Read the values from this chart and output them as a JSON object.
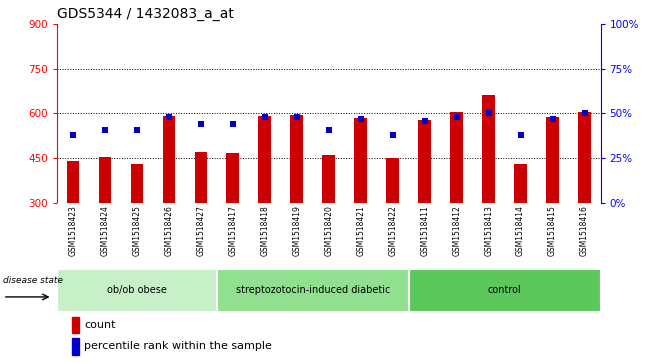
{
  "title": "GDS5344 / 1432083_a_at",
  "samples": [
    "GSM1518423",
    "GSM1518424",
    "GSM1518425",
    "GSM1518426",
    "GSM1518427",
    "GSM1518417",
    "GSM1518418",
    "GSM1518419",
    "GSM1518420",
    "GSM1518421",
    "GSM1518422",
    "GSM1518411",
    "GSM1518412",
    "GSM1518413",
    "GSM1518414",
    "GSM1518415",
    "GSM1518416"
  ],
  "counts": [
    440,
    455,
    430,
    590,
    470,
    468,
    590,
    596,
    462,
    585,
    452,
    578,
    605,
    660,
    430,
    587,
    605
  ],
  "percentile_ranks": [
    38,
    41,
    41,
    48,
    44,
    44,
    48,
    48,
    41,
    47,
    38,
    46,
    48,
    50,
    38,
    47,
    50
  ],
  "groups": [
    {
      "label": "ob/ob obese",
      "start": 0,
      "end": 5,
      "color": "#c8f0c8"
    },
    {
      "label": "streptozotocin-induced diabetic",
      "start": 5,
      "end": 11,
      "color": "#90e090"
    },
    {
      "label": "control",
      "start": 11,
      "end": 17,
      "color": "#5cc85c"
    }
  ],
  "bar_color": "#cc0000",
  "dot_color": "#0000cc",
  "plot_bg": "#ffffff",
  "xtick_bg": "#d8d8d8",
  "ylim_left": [
    300,
    900
  ],
  "ylim_right": [
    0,
    100
  ],
  "yticks_left": [
    300,
    450,
    600,
    750,
    900
  ],
  "yticks_right": [
    0,
    25,
    50,
    75,
    100
  ],
  "grid_lines": [
    450,
    600,
    750
  ],
  "title_fontsize": 10,
  "bar_width": 0.4,
  "legend_count_label": "count",
  "legend_percentile_label": "percentile rank within the sample",
  "disease_state_label": "disease state"
}
